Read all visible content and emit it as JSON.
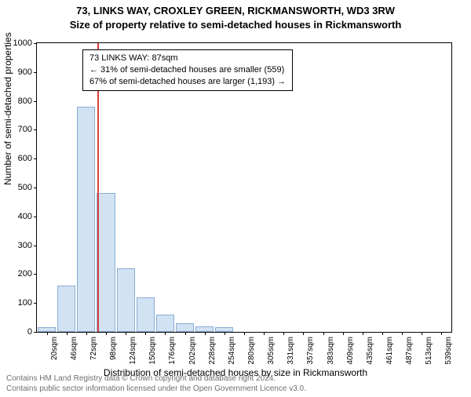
{
  "title_line1": "73, LINKS WAY, CROXLEY GREEN, RICKMANSWORTH, WD3 3RW",
  "title_line2": "Size of property relative to semi-detached houses in Rickmansworth",
  "chart": {
    "type": "histogram",
    "ylabel": "Number of semi-detached properties",
    "xlabel": "Distribution of semi-detached houses by size in Rickmansworth",
    "ylim": [
      0,
      1000
    ],
    "ytick_step": 100,
    "x_categories": [
      "20sqm",
      "46sqm",
      "72sqm",
      "98sqm",
      "124sqm",
      "150sqm",
      "176sqm",
      "202sqm",
      "228sqm",
      "254sqm",
      "280sqm",
      "305sqm",
      "331sqm",
      "357sqm",
      "383sqm",
      "409sqm",
      "435sqm",
      "461sqm",
      "487sqm",
      "513sqm",
      "539sqm"
    ],
    "bar_fill": "#d1e2f3",
    "bar_stroke": "#8aaed4",
    "bar_values": [
      15,
      160,
      780,
      480,
      220,
      120,
      60,
      30,
      20,
      15,
      0,
      0,
      0,
      0,
      0,
      0,
      0,
      0,
      0,
      0,
      0
    ],
    "marker_color": "#d94040",
    "marker_index_after": 2,
    "background_color": "#ffffff"
  },
  "infobox": {
    "line1": "73 LINKS WAY: 87sqm",
    "line2": "← 31% of semi-detached houses are smaller (559)",
    "line3": "67% of semi-detached houses are larger (1,193) →"
  },
  "footer": {
    "line1": "Contains HM Land Registry data © Crown copyright and database right 2024.",
    "line2": "Contains public sector information licensed under the Open Government Licence v3.0."
  }
}
